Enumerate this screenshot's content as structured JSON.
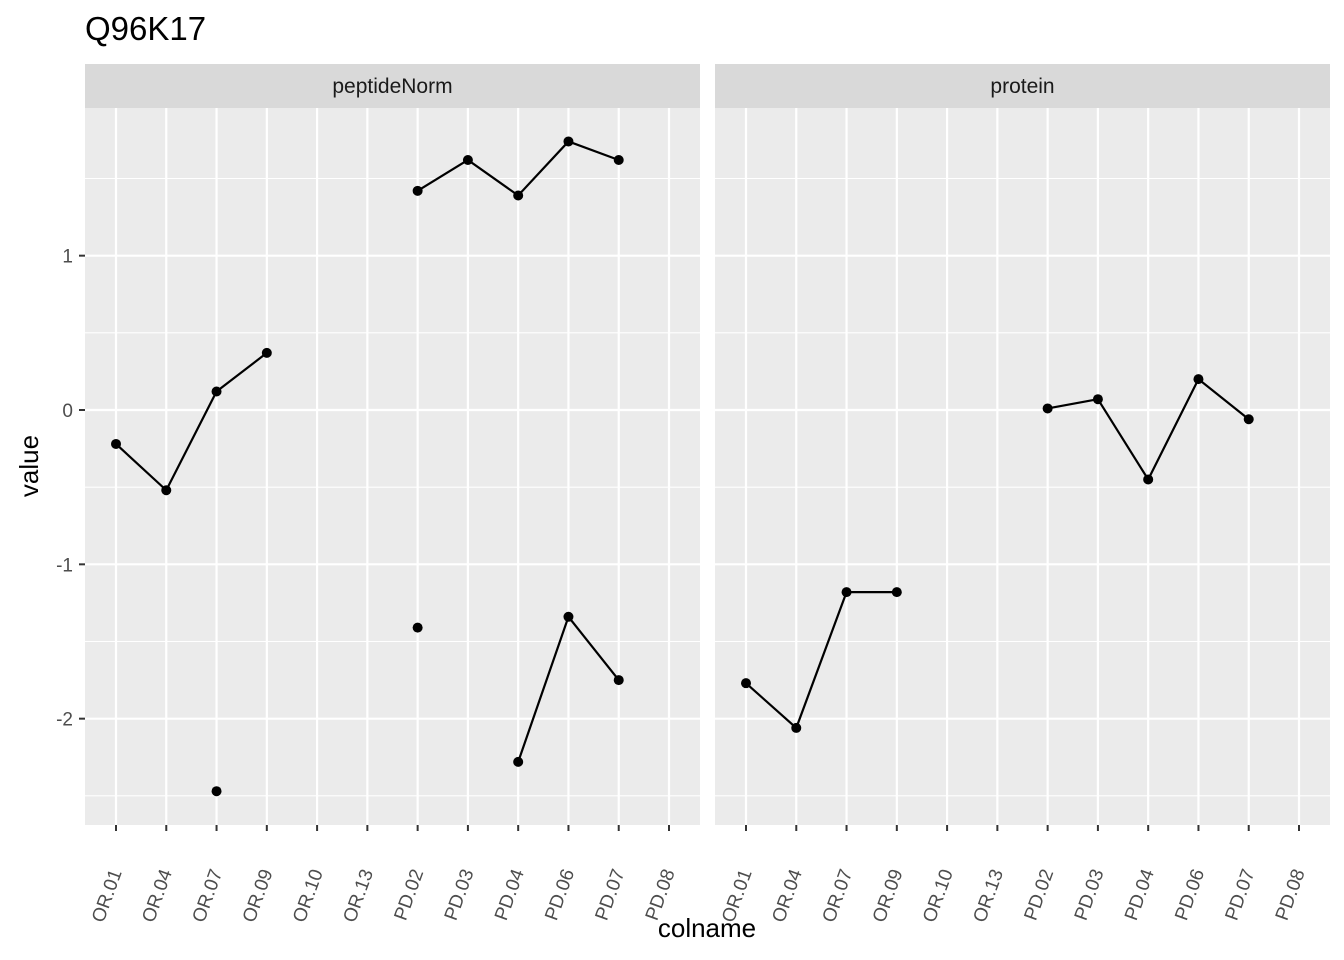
{
  "chart_data": {
    "type": "line",
    "title": "Q96K17",
    "xlabel": "colname",
    "ylabel": "value",
    "categories": [
      "OR.01",
      "OR.04",
      "OR.07",
      "OR.09",
      "OR.10",
      "OR.13",
      "PD.02",
      "PD.03",
      "PD.04",
      "PD.06",
      "PD.07",
      "PD.08"
    ],
    "y_ticks": [
      "-2",
      "-1",
      "0",
      "1"
    ],
    "ylim": [
      -2.7,
      1.9
    ],
    "grid": true,
    "colors": {
      "panel": "#ebebeb",
      "strip": "#d9d9d9",
      "grid": "#ffffff",
      "line": "#000000"
    },
    "facets": [
      {
        "label": "peptideNorm",
        "series": [
          {
            "values": [
              -0.22,
              -0.52,
              0.12,
              0.37,
              null,
              null,
              1.42,
              1.62,
              1.39,
              1.74,
              1.62,
              null
            ]
          },
          {
            "values": [
              null,
              null,
              -2.47,
              null,
              null,
              null,
              -1.41,
              null,
              -2.28,
              -1.34,
              -1.75,
              null
            ]
          }
        ]
      },
      {
        "label": "protein",
        "series": [
          {
            "values": [
              -1.77,
              -2.06,
              -1.18,
              -1.18,
              null,
              null,
              0.01,
              0.07,
              -0.45,
              0.2,
              -0.06,
              null
            ]
          }
        ]
      }
    ]
  }
}
